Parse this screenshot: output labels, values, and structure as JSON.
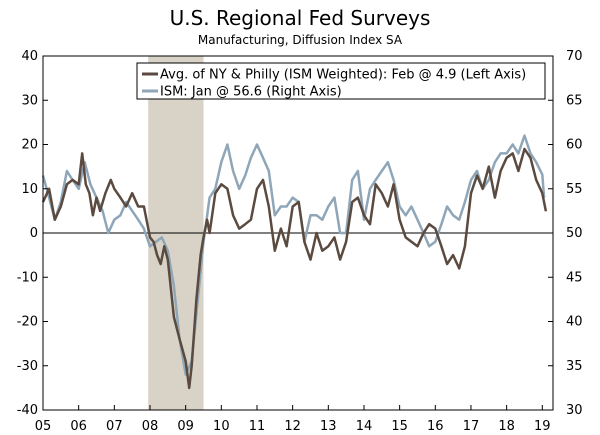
{
  "chart_data": {
    "type": "line",
    "title": "U.S. Regional Fed Surveys",
    "subtitle": "Manufacturing, Diffusion Index SA",
    "x_tick_labels": [
      "05",
      "06",
      "07",
      "08",
      "09",
      "10",
      "11",
      "12",
      "13",
      "14",
      "15",
      "16",
      "17",
      "18",
      "19"
    ],
    "y_left_ticks": [
      -40,
      -30,
      -20,
      -10,
      0,
      10,
      20,
      30,
      40
    ],
    "y_right_ticks": [
      30,
      35,
      40,
      45,
      50,
      55,
      60,
      65,
      70
    ],
    "ylim_left": [
      -40,
      40
    ],
    "ylim_right": [
      30,
      70
    ],
    "recession_shading": {
      "start": 2007.95,
      "end": 2009.5
    },
    "colors": {
      "series_dark": "#5b4a3f",
      "series_light": "#8fa6b8",
      "recession": "#d8d3c6"
    },
    "series": [
      {
        "name": "Avg. of NY & Philly (ISM Weighted): Feb @ 4.9  (Left Axis)",
        "axis": "left",
        "x": [
          2005.0,
          2005.17,
          2005.33,
          2005.5,
          2005.67,
          2005.83,
          2006.0,
          2006.1,
          2006.2,
          2006.3,
          2006.4,
          2006.5,
          2006.6,
          2006.75,
          2006.9,
          2007.0,
          2007.17,
          2007.33,
          2007.5,
          2007.67,
          2007.83,
          2008.0,
          2008.1,
          2008.2,
          2008.3,
          2008.4,
          2008.5,
          2008.67,
          2008.83,
          2009.0,
          2009.1,
          2009.17,
          2009.3,
          2009.42,
          2009.5,
          2009.6,
          2009.67,
          2009.83,
          2010.0,
          2010.17,
          2010.33,
          2010.5,
          2010.67,
          2010.83,
          2011.0,
          2011.17,
          2011.33,
          2011.5,
          2011.67,
          2011.83,
          2012.0,
          2012.17,
          2012.33,
          2012.5,
          2012.67,
          2012.83,
          2013.0,
          2013.17,
          2013.33,
          2013.5,
          2013.67,
          2013.83,
          2014.0,
          2014.17,
          2014.33,
          2014.5,
          2014.67,
          2014.83,
          2015.0,
          2015.17,
          2015.33,
          2015.5,
          2015.67,
          2015.83,
          2016.0,
          2016.17,
          2016.33,
          2016.5,
          2016.67,
          2016.83,
          2017.0,
          2017.17,
          2017.33,
          2017.5,
          2017.67,
          2017.83,
          2018.0,
          2018.17,
          2018.33,
          2018.5,
          2018.67,
          2018.83,
          2019.0,
          2019.1
        ],
        "values": [
          7,
          10,
          3,
          6,
          11,
          12,
          11,
          18,
          11,
          9,
          4,
          8,
          5,
          9,
          12,
          10,
          8,
          6,
          9,
          6,
          6,
          -1,
          -2,
          -5,
          -7,
          -3,
          -6,
          -19,
          -24,
          -29,
          -35,
          -30,
          -15,
          -5,
          -1,
          3,
          0,
          9,
          11,
          10,
          4,
          1,
          2,
          3,
          10,
          12,
          6,
          -4,
          1,
          -3,
          6,
          7,
          -2,
          -6,
          0,
          -4,
          -3,
          -1,
          -6,
          -2,
          7,
          8,
          4,
          2,
          11,
          9,
          6,
          11,
          3,
          -1,
          -2,
          -3,
          0,
          2,
          1,
          -3,
          -7,
          -5,
          -8,
          -3,
          9,
          13,
          10,
          15,
          8,
          14,
          17,
          18,
          14,
          19,
          17,
          12,
          9,
          4.9
        ],
        "color": "#5b4a3f"
      },
      {
        "name": "ISM: Jan @ 56.6  (Right Axis)",
        "axis": "right",
        "x": [
          2005.0,
          2005.17,
          2005.33,
          2005.5,
          2005.67,
          2005.83,
          2006.0,
          2006.17,
          2006.33,
          2006.5,
          2006.67,
          2006.83,
          2007.0,
          2007.17,
          2007.33,
          2007.5,
          2007.67,
          2007.83,
          2008.0,
          2008.17,
          2008.33,
          2008.5,
          2008.67,
          2008.83,
          2009.0,
          2009.17,
          2009.33,
          2009.5,
          2009.67,
          2009.83,
          2010.0,
          2010.17,
          2010.33,
          2010.5,
          2010.67,
          2010.83,
          2011.0,
          2011.17,
          2011.33,
          2011.5,
          2011.67,
          2011.83,
          2012.0,
          2012.17,
          2012.33,
          2012.5,
          2012.67,
          2012.83,
          2013.0,
          2013.17,
          2013.33,
          2013.5,
          2013.67,
          2013.83,
          2014.0,
          2014.17,
          2014.33,
          2014.5,
          2014.67,
          2014.83,
          2015.0,
          2015.17,
          2015.33,
          2015.5,
          2015.67,
          2015.83,
          2016.0,
          2016.17,
          2016.33,
          2016.5,
          2016.67,
          2016.83,
          2017.0,
          2017.17,
          2017.33,
          2017.5,
          2017.67,
          2017.83,
          2018.0,
          2018.17,
          2018.33,
          2018.5,
          2018.67,
          2018.83,
          2019.0,
          2019.05
        ],
        "values": [
          56.5,
          54,
          51.5,
          53.5,
          57,
          56,
          55,
          58,
          55.5,
          54,
          52.5,
          50,
          51.5,
          52,
          53.5,
          52.5,
          51.5,
          50.5,
          48.5,
          49,
          49.5,
          48,
          44,
          38,
          34,
          35.5,
          42,
          49,
          54,
          55,
          58,
          60,
          57,
          55,
          56.5,
          58.5,
          60,
          58.5,
          57,
          52,
          53,
          53,
          54,
          53.5,
          49,
          52,
          52,
          51.5,
          53,
          54,
          50,
          50,
          56,
          57,
          51.5,
          55,
          56,
          57,
          58,
          56,
          53,
          52,
          53,
          51.5,
          50,
          48.5,
          49,
          51,
          53,
          52,
          51.5,
          53.5,
          56,
          57,
          55,
          56,
          58,
          59,
          59,
          60,
          59,
          61,
          59,
          58,
          56.6,
          54
        ]
      }
    ]
  }
}
